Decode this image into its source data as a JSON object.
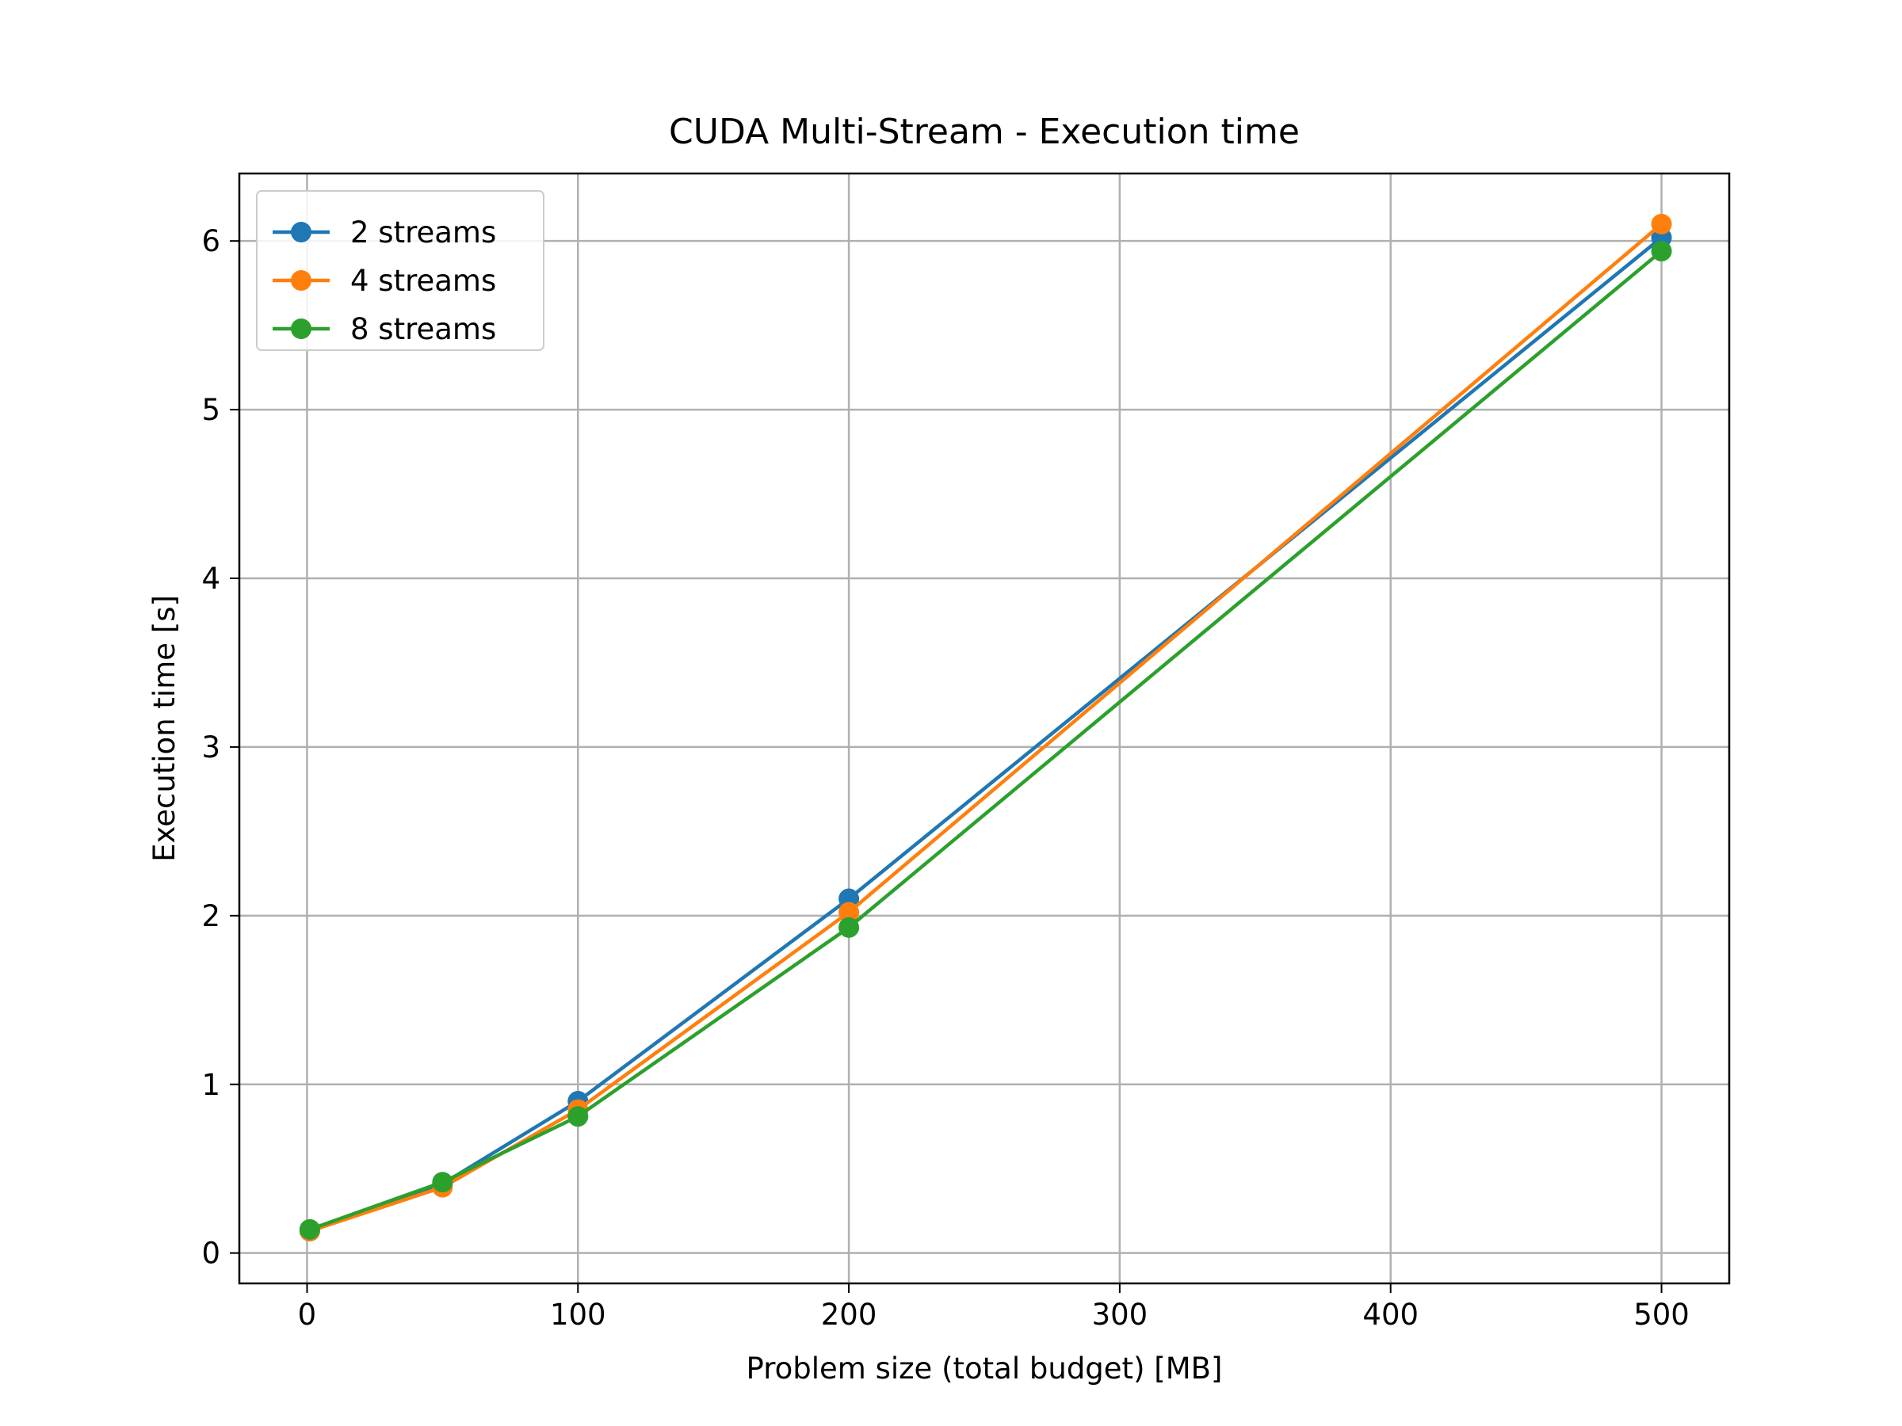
{
  "chart_data": {
    "type": "line",
    "title": "CUDA Multi-Stream - Execution time",
    "xlabel": "Problem size (total budget) [MB]",
    "ylabel": "Execution time [s]",
    "x": [
      1,
      50,
      100,
      200,
      500
    ],
    "xlim": [
      -25,
      525
    ],
    "ylim": [
      -0.18,
      6.4
    ],
    "xticks": [
      0,
      100,
      200,
      300,
      400,
      500
    ],
    "yticks": [
      0,
      1,
      2,
      3,
      4,
      5,
      6
    ],
    "grid": true,
    "legend_position": "top-left",
    "marker": "circle",
    "series": [
      {
        "name": "2 streams",
        "color": "#1f77b4",
        "values": [
          0.13,
          0.41,
          0.9,
          2.1,
          6.02
        ]
      },
      {
        "name": "4 streams",
        "color": "#ff7f0e",
        "values": [
          0.13,
          0.39,
          0.85,
          2.02,
          6.1
        ]
      },
      {
        "name": "8 streams",
        "color": "#2ca02c",
        "values": [
          0.14,
          0.42,
          0.81,
          1.93,
          5.94
        ]
      }
    ]
  }
}
